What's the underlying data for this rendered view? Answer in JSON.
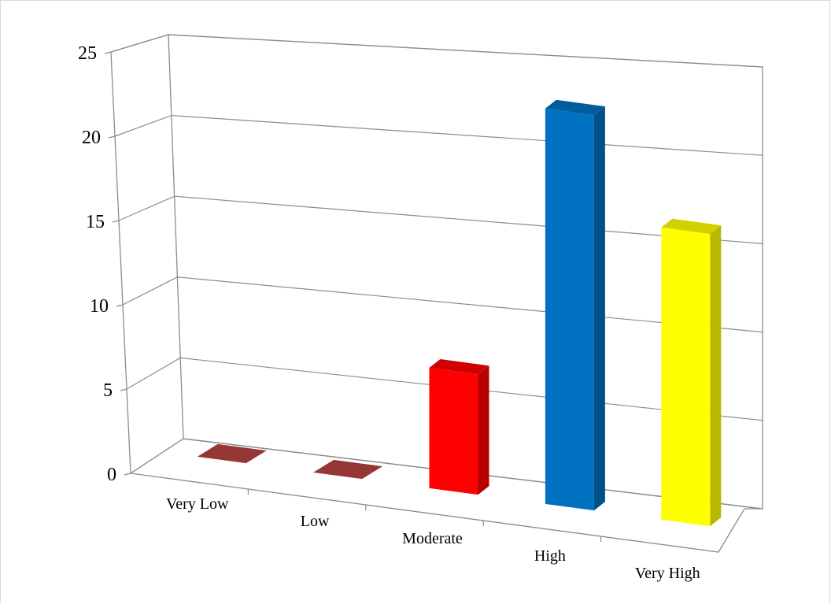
{
  "chart_data": {
    "type": "bar",
    "title": "",
    "xlabel": "",
    "ylabel": "",
    "ylim": [
      0,
      25
    ],
    "yticks": [
      0,
      5,
      10,
      15,
      20,
      25
    ],
    "grid": true,
    "legend": "none",
    "categories": [
      "Very Low",
      "Low",
      "Moderate",
      "High",
      "Very High"
    ],
    "values": [
      0,
      0,
      7,
      23,
      17
    ],
    "colors": [
      "#953735",
      "#953735",
      "#ff0000",
      "#0070c0",
      "#ffff00"
    ],
    "style": "3d-column"
  }
}
